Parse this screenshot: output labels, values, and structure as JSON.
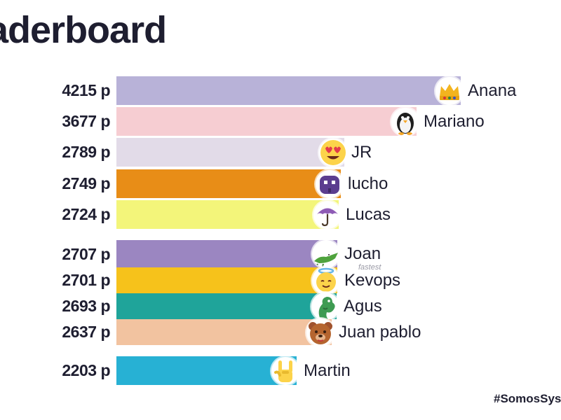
{
  "title": "aderboard",
  "hashtag": "#SomosSys",
  "chart_data": {
    "type": "bar",
    "orientation": "horizontal",
    "categories": [
      "Anana",
      "Mariano",
      "JR",
      "lucho",
      "Lucas",
      "Joan",
      "Kevops",
      "Agus",
      "Juan pablo",
      "Martin"
    ],
    "values": [
      4215,
      3677,
      2789,
      2749,
      2724,
      2707,
      2701,
      2693,
      2637,
      2203
    ],
    "score_labels": [
      "4215 p",
      "3677 p",
      "2789 p",
      "2749 p",
      "2724 p",
      "2707 p",
      "2701 p",
      "2693 p",
      "2637 p",
      "2203 p"
    ],
    "colors": [
      "#b8b2d8",
      "#f6cdd2",
      "#e2dbe8",
      "#e88d17",
      "#f3f57a",
      "#9b86c1",
      "#f6c21b",
      "#1fa49a",
      "#f2c3a0",
      "#27b1d4"
    ],
    "icons": [
      "crown-icon",
      "penguin-icon",
      "heart-eyes-face-icon",
      "space-invader-icon",
      "umbrella-icon",
      "crocodile-icon",
      "angel-face-icon",
      "dragon-icon",
      "bear-face-icon",
      "rock-hand-icon"
    ],
    "badges": [
      "",
      "",
      "",
      "",
      "",
      "",
      "fastest",
      "",
      "",
      ""
    ],
    "xlim": [
      0,
      4215
    ]
  }
}
